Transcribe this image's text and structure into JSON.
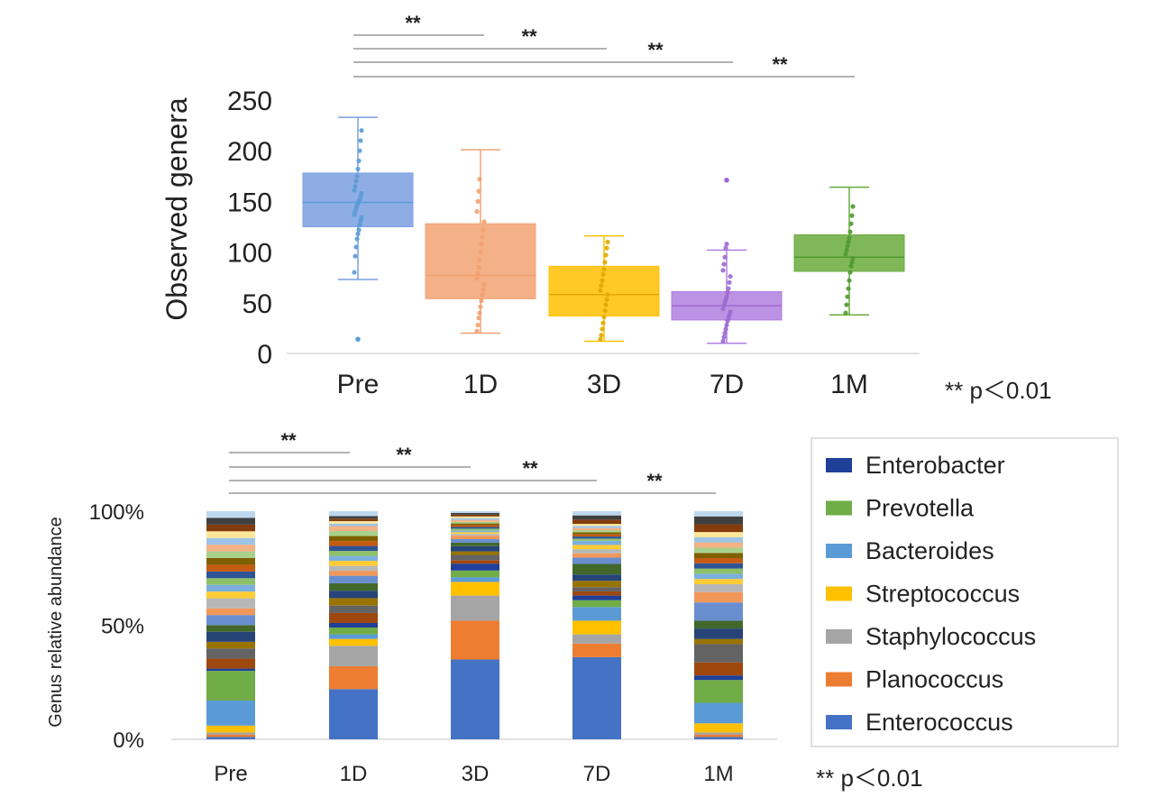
{
  "top_chart_stars": [
    "**",
    "**",
    "**",
    "**"
  ],
  "top_chart_note": "** p＜0.01",
  "bottom_chart_stars": [
    "**",
    "**",
    "**",
    "**"
  ],
  "bottom_chart_note": "** p＜0.01",
  "chart_data": [
    {
      "type": "box",
      "title": "",
      "ylabel": "Observed  genera",
      "xlabel": "",
      "ylim": [
        0,
        250
      ],
      "yticks": [
        "0",
        "50",
        "100",
        "150",
        "200",
        "250"
      ],
      "grid": false,
      "categories": [
        "Pre",
        "1D",
        "3D",
        "7D",
        "1M"
      ],
      "colors": [
        "#7b9fe0",
        "#f2a272",
        "#ffc000",
        "#b07fdf",
        "#6aab3c"
      ],
      "point_colors": [
        "#5b9bd5",
        "#f4a06f",
        "#e0a800",
        "#9b6ad0",
        "#4e9a2e"
      ],
      "boxes": [
        {
          "whisker_low": 73,
          "q1": 125,
          "median": 149,
          "q3": 178,
          "whisker_high": 233,
          "outliers": [
            14
          ],
          "points": [
            80,
            96,
            105,
            113,
            118,
            122,
            127,
            131,
            134,
            137,
            140,
            143,
            146,
            148,
            150,
            152,
            155,
            158,
            161,
            165,
            170,
            175,
            182,
            190,
            200,
            210,
            220
          ]
        },
        {
          "whisker_low": 20,
          "q1": 54,
          "median": 77,
          "q3": 128,
          "whisker_high": 201,
          "outliers": [],
          "points": [
            22,
            28,
            35,
            40,
            46,
            52,
            58,
            63,
            68,
            74,
            79,
            85,
            92,
            100,
            108,
            115,
            122,
            130,
            140,
            150,
            160,
            172
          ]
        },
        {
          "whisker_low": 12,
          "q1": 37,
          "median": 58,
          "q3": 86,
          "whisker_high": 116,
          "outliers": [],
          "points": [
            14,
            18,
            24,
            30,
            36,
            42,
            48,
            53,
            58,
            62,
            67,
            72,
            78,
            83,
            90,
            97,
            104,
            110
          ]
        },
        {
          "whisker_low": 10,
          "q1": 33,
          "median": 47,
          "q3": 61,
          "whisker_high": 102,
          "outliers": [
            171
          ],
          "points": [
            12,
            16,
            20,
            24,
            28,
            32,
            35,
            38,
            41,
            44,
            47,
            50,
            53,
            56,
            60,
            64,
            70,
            76,
            82,
            88,
            95,
            104,
            108
          ]
        },
        {
          "whisker_low": 38,
          "q1": 81,
          "median": 95,
          "q3": 117,
          "whisker_high": 164,
          "outliers": [],
          "points": [
            40,
            48,
            56,
            64,
            72,
            80,
            86,
            90,
            94,
            98,
            102,
            106,
            110,
            114,
            120,
            128,
            136,
            145
          ]
        }
      ]
    },
    {
      "type": "bar",
      "stacked": true,
      "title": "",
      "ylabel": "Genus relative abundance",
      "xlabel": "",
      "ylim": [
        0,
        100
      ],
      "yticks": [
        "0%",
        "50%",
        "100%"
      ],
      "grid": false,
      "legend_position": "right",
      "categories": [
        "Pre",
        "1D",
        "3D",
        "7D",
        "1M"
      ],
      "series": [
        {
          "name": "Enterococcus",
          "color": "#4472c4",
          "values": [
            1,
            22,
            35,
            36,
            1
          ]
        },
        {
          "name": "Planococcus",
          "color": "#ed7d31",
          "values": [
            1,
            10,
            17,
            6,
            1
          ]
        },
        {
          "name": "Staphylococcus",
          "color": "#a5a5a5",
          "values": [
            1,
            9,
            11,
            4,
            1
          ]
        },
        {
          "name": "Streptococcus",
          "color": "#ffc000",
          "values": [
            3,
            3,
            6,
            6,
            4
          ]
        },
        {
          "name": "Bacteroides",
          "color": "#5b9bd5",
          "values": [
            11,
            2,
            2,
            6,
            9
          ]
        },
        {
          "name": "Prevotella",
          "color": "#70ad47",
          "values": [
            13,
            3,
            3,
            3,
            10
          ]
        },
        {
          "name": "Enterobacter",
          "color": "#1f3f99",
          "values": [
            1,
            2,
            3,
            2,
            2
          ]
        }
      ],
      "other_colors": [
        "#9e480e",
        "#636363",
        "#997300",
        "#264478",
        "#43682b",
        "#698ed0",
        "#f1975a",
        "#b7b7b7",
        "#ffcd33",
        "#7cafdd",
        "#8cc168",
        "#2e5496",
        "#c55a11",
        "#7f6000",
        "#a9d18e",
        "#f4b183",
        "#9dc3e6",
        "#ffe699",
        "#843c0c",
        "#404040",
        "#bdd7ee"
      ],
      "other_values": [
        [
          3,
          3,
          2,
          3,
          2,
          3,
          2,
          3,
          2,
          2,
          2,
          2,
          2,
          2,
          2,
          2,
          2,
          2,
          2,
          2,
          2
        ],
        [
          4,
          3,
          3,
          3,
          3,
          3,
          2,
          2,
          2,
          2,
          2,
          2,
          2,
          2,
          2,
          2,
          1,
          1,
          1,
          1,
          2
        ],
        [
          2,
          3,
          2,
          3,
          2,
          2,
          2,
          1,
          1,
          1,
          1,
          1,
          1,
          1,
          1,
          1,
          1,
          1,
          1,
          1,
          1
        ],
        [
          2,
          2,
          3,
          3,
          5,
          3,
          2,
          2,
          2,
          2,
          1,
          1,
          1,
          1,
          1,
          1,
          1,
          1,
          2,
          2,
          2
        ],
        [
          5,
          7,
          2,
          4,
          3,
          7,
          4,
          3,
          2,
          2,
          2,
          2,
          2,
          2,
          2,
          2,
          2,
          2,
          3,
          3,
          2
        ]
      ]
    }
  ]
}
